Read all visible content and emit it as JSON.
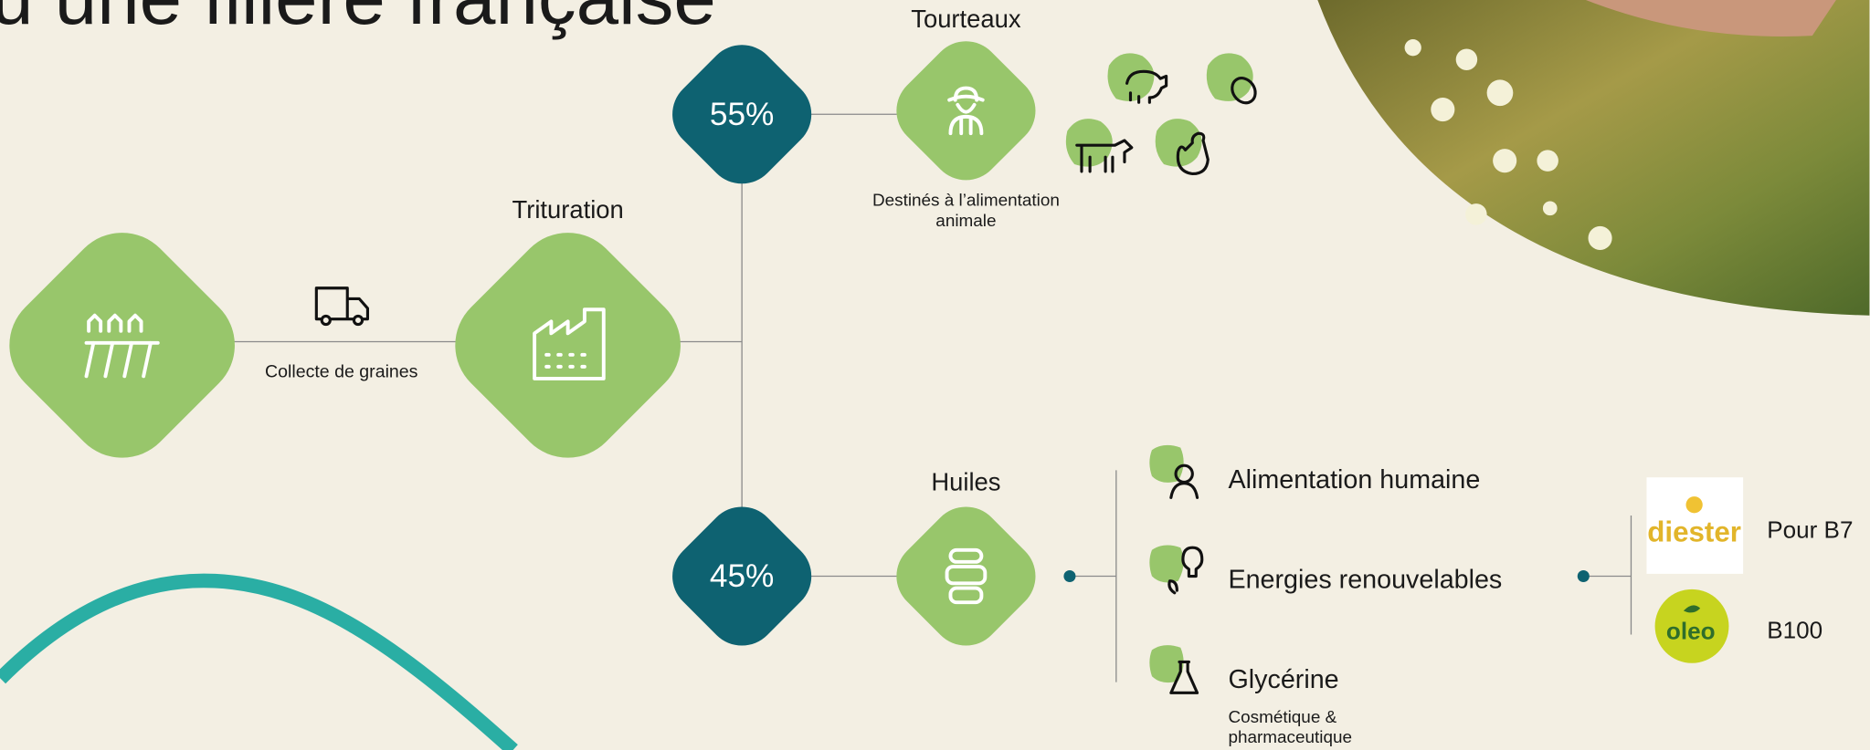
{
  "title": "u une filière française",
  "nodes": {
    "collecte": "Collecte de graines",
    "trituration": "Trituration",
    "tourteaux": {
      "label": "Tourteaux",
      "share": "55%",
      "note": [
        "Destinés à l’alimentation",
        "animale"
      ]
    },
    "huiles": {
      "label": "Huiles",
      "share": "45%"
    }
  },
  "uses": [
    {
      "label": "Alimentation humaine"
    },
    {
      "label": "Energies renouvelables"
    },
    {
      "label": "Glycérine",
      "note": [
        "Cosmétique &",
        "pharmaceutique"
      ]
    }
  ],
  "biofuels": [
    {
      "logo": "diester",
      "label": "Pour B7"
    },
    {
      "logo": "oleo",
      "label": "B100"
    }
  ]
}
